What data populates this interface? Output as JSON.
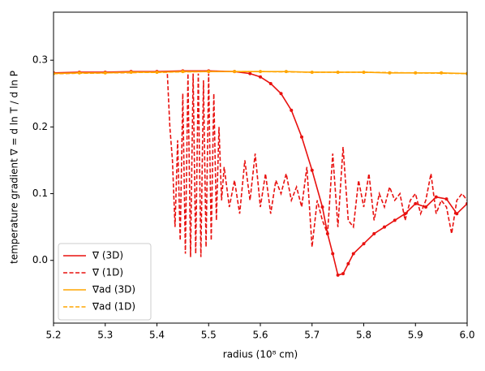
{
  "chart_data": {
    "type": "line",
    "xlabel": "radius (10⁸ cm)",
    "ylabel": "temperature gradient   ∇ = d ln T / d ln P",
    "xlim": [
      5.2,
      6.0
    ],
    "ylim": [
      -0.094,
      0.372
    ],
    "xticks": [
      5.2,
      5.3,
      5.4,
      5.5,
      5.6,
      5.7,
      5.8,
      5.9,
      {
        "value": 6,
        "label": "6.0"
      }
    ],
    "yticks": [
      {
        "value": 0,
        "label": "0.0"
      },
      0.1,
      0.2,
      0.3
    ],
    "legend": "lower left",
    "series": [
      {
        "name": "∇ (3D)",
        "color": "#e8110f",
        "dash": false,
        "marker": true,
        "x": [
          5.2,
          5.25,
          5.3,
          5.35,
          5.4,
          5.45,
          5.5,
          5.55,
          5.58,
          5.6,
          5.62,
          5.64,
          5.66,
          5.68,
          5.7,
          5.72,
          5.73,
          5.74,
          5.75,
          5.76,
          5.77,
          5.78,
          5.8,
          5.82,
          5.84,
          5.86,
          5.88,
          5.9,
          5.92,
          5.94,
          5.96,
          5.98,
          6.0
        ],
        "values": [
          0.281,
          0.282,
          0.282,
          0.283,
          0.283,
          0.284,
          0.284,
          0.283,
          0.28,
          0.275,
          0.265,
          0.25,
          0.225,
          0.185,
          0.135,
          0.08,
          0.04,
          0.01,
          -0.022,
          -0.02,
          -0.005,
          0.01,
          0.025,
          0.04,
          0.05,
          0.06,
          0.07,
          0.085,
          0.08,
          0.095,
          0.092,
          0.07,
          0.085
        ]
      },
      {
        "name": "∇ (1D)",
        "color": "#e8110f",
        "dash": true,
        "marker": false,
        "x": [
          5.2,
          5.3,
          5.4,
          5.42,
          5.425,
          5.43,
          5.435,
          5.44,
          5.445,
          5.45,
          5.455,
          5.46,
          5.465,
          5.47,
          5.475,
          5.48,
          5.485,
          5.49,
          5.495,
          5.5,
          5.505,
          5.51,
          5.515,
          5.52,
          5.525,
          5.53,
          5.54,
          5.55,
          5.56,
          5.57,
          5.58,
          5.59,
          5.6,
          5.61,
          5.62,
          5.63,
          5.64,
          5.65,
          5.66,
          5.67,
          5.68,
          5.69,
          5.7,
          5.71,
          5.72,
          5.73,
          5.74,
          5.75,
          5.76,
          5.77,
          5.78,
          5.79,
          5.8,
          5.81,
          5.82,
          5.83,
          5.84,
          5.85,
          5.86,
          5.87,
          5.88,
          5.89,
          5.9,
          5.91,
          5.92,
          5.93,
          5.94,
          5.95,
          5.96,
          5.97,
          5.98,
          5.99,
          6.0
        ],
        "values": [
          0.28,
          0.281,
          0.282,
          0.282,
          0.2,
          0.15,
          0.05,
          0.18,
          0.03,
          0.25,
          0.01,
          0.28,
          0.005,
          0.28,
          0.01,
          0.28,
          0.005,
          0.27,
          0.02,
          0.28,
          0.03,
          0.25,
          0.06,
          0.2,
          0.09,
          0.14,
          0.08,
          0.12,
          0.07,
          0.15,
          0.09,
          0.16,
          0.08,
          0.13,
          0.07,
          0.12,
          0.1,
          0.13,
          0.09,
          0.11,
          0.08,
          0.14,
          0.02,
          0.09,
          0.06,
          0.04,
          0.16,
          0.05,
          0.17,
          0.06,
          0.05,
          0.12,
          0.08,
          0.13,
          0.06,
          0.1,
          0.08,
          0.11,
          0.09,
          0.1,
          0.06,
          0.09,
          0.1,
          0.07,
          0.09,
          0.13,
          0.07,
          0.09,
          0.08,
          0.04,
          0.09,
          0.1,
          0.09
        ]
      },
      {
        "name": "∇ad (3D)",
        "color": "#ffa500",
        "dash": false,
        "marker": true,
        "x": [
          5.2,
          5.25,
          5.3,
          5.35,
          5.4,
          5.45,
          5.5,
          5.55,
          5.6,
          5.65,
          5.7,
          5.75,
          5.8,
          5.85,
          5.9,
          5.95,
          6.0
        ],
        "values": [
          0.28,
          0.281,
          0.281,
          0.282,
          0.282,
          0.283,
          0.283,
          0.283,
          0.283,
          0.283,
          0.282,
          0.282,
          0.282,
          0.281,
          0.281,
          0.281,
          0.28
        ]
      },
      {
        "name": "∇ad (1D)",
        "color": "#ffa500",
        "dash": true,
        "marker": false,
        "x": [
          5.2,
          5.3,
          5.4,
          5.5,
          5.6,
          5.7,
          5.8,
          5.9,
          6.0
        ],
        "values": [
          0.28,
          0.281,
          0.282,
          0.283,
          0.283,
          0.282,
          0.282,
          0.281,
          0.28
        ]
      }
    ]
  }
}
